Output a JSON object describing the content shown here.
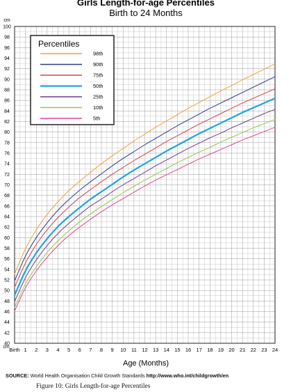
{
  "chart_data": {
    "type": "line",
    "title": "Girls Length-for-age Percentiles",
    "subtitle": "Birth to 24 Months",
    "xlabel": "Age (Months)",
    "ylabel": "",
    "y_unit_label": "cm",
    "xlim": [
      0,
      24
    ],
    "ylim": [
      40,
      100
    ],
    "y_tick_step": 2,
    "x_tick_labels": [
      "Birth",
      "1",
      "2",
      "3",
      "4",
      "5",
      "6",
      "7",
      "8",
      "9",
      "10",
      "11",
      "12",
      "13",
      "14",
      "15",
      "16",
      "17",
      "18",
      "19",
      "20",
      "21",
      "22",
      "23",
      "24"
    ],
    "grid": true,
    "legend": {
      "title": "Percentiles",
      "position": "top-left"
    },
    "x": [
      0,
      1,
      2,
      3,
      4,
      5,
      6,
      7,
      8,
      9,
      10,
      11,
      12,
      13,
      14,
      15,
      16,
      17,
      18,
      19,
      20,
      21,
      22,
      23,
      24
    ],
    "series": [
      {
        "name": "98th",
        "color": "#f0a13c",
        "bold": false,
        "values": [
          53.1,
          57.9,
          61.5,
          64.4,
          66.8,
          68.9,
          70.7,
          72.4,
          74.0,
          75.5,
          76.9,
          78.3,
          79.6,
          80.9,
          82.1,
          83.3,
          84.5,
          85.6,
          86.7,
          87.8,
          88.8,
          89.9,
          90.9,
          91.9,
          92.9
        ]
      },
      {
        "name": "90th",
        "color": "#2e3a8c",
        "bold": false,
        "values": [
          51.8,
          56.5,
          60.0,
          62.8,
          65.2,
          67.2,
          69.0,
          70.6,
          72.1,
          73.6,
          75.0,
          76.3,
          77.6,
          78.8,
          80.0,
          81.2,
          82.3,
          83.4,
          84.5,
          85.5,
          86.5,
          87.5,
          88.5,
          89.5,
          90.5
        ]
      },
      {
        "name": "75th",
        "color": "#d6424e",
        "bold": false,
        "values": [
          50.6,
          55.2,
          58.7,
          61.5,
          63.8,
          65.8,
          67.6,
          69.1,
          70.6,
          72.0,
          73.3,
          74.6,
          75.8,
          77.0,
          78.2,
          79.3,
          80.4,
          81.5,
          82.5,
          83.5,
          84.5,
          85.5,
          86.4,
          87.3,
          88.2
        ]
      },
      {
        "name": "50th",
        "color": "#1fa3e0",
        "bold": true,
        "values": [
          49.1,
          53.7,
          57.1,
          59.8,
          62.1,
          64.0,
          65.7,
          67.3,
          68.7,
          70.1,
          71.5,
          72.8,
          74.0,
          75.2,
          76.4,
          77.5,
          78.6,
          79.7,
          80.7,
          81.7,
          82.7,
          83.7,
          84.6,
          85.5,
          86.4
        ]
      },
      {
        "name": "25th",
        "color": "#6e3d8e",
        "bold": false,
        "values": [
          47.9,
          52.4,
          55.8,
          58.5,
          60.8,
          62.7,
          64.4,
          66.0,
          67.3,
          68.7,
          70.0,
          71.2,
          72.4,
          73.6,
          74.7,
          75.8,
          76.9,
          77.9,
          78.9,
          79.8,
          80.8,
          81.7,
          82.6,
          83.5,
          84.3
        ]
      },
      {
        "name": "10th",
        "color": "#93c84a",
        "bold": false,
        "values": [
          46.8,
          51.2,
          54.5,
          57.2,
          59.4,
          61.3,
          63.0,
          64.5,
          65.9,
          67.2,
          68.5,
          69.7,
          70.9,
          72.0,
          73.1,
          74.2,
          75.2,
          76.2,
          77.1,
          78.1,
          79.0,
          79.9,
          80.8,
          81.6,
          82.4
        ]
      },
      {
        "name": "5th",
        "color": "#e0469b",
        "bold": false,
        "values": [
          46.1,
          50.5,
          53.7,
          56.3,
          58.5,
          60.4,
          62.0,
          63.5,
          64.9,
          66.2,
          67.4,
          68.6,
          69.8,
          70.9,
          71.9,
          72.9,
          73.9,
          74.9,
          75.8,
          76.7,
          77.6,
          78.5,
          79.3,
          80.1,
          80.9
        ]
      }
    ]
  },
  "footer": {
    "source_label": "SOURCE:",
    "source_text": "World Health Organisation Child Growth Standards",
    "source_url": "http://www.who.int/childgrowth/en"
  },
  "caption": "Figure 10: Girls Length-for-age Percentiles"
}
